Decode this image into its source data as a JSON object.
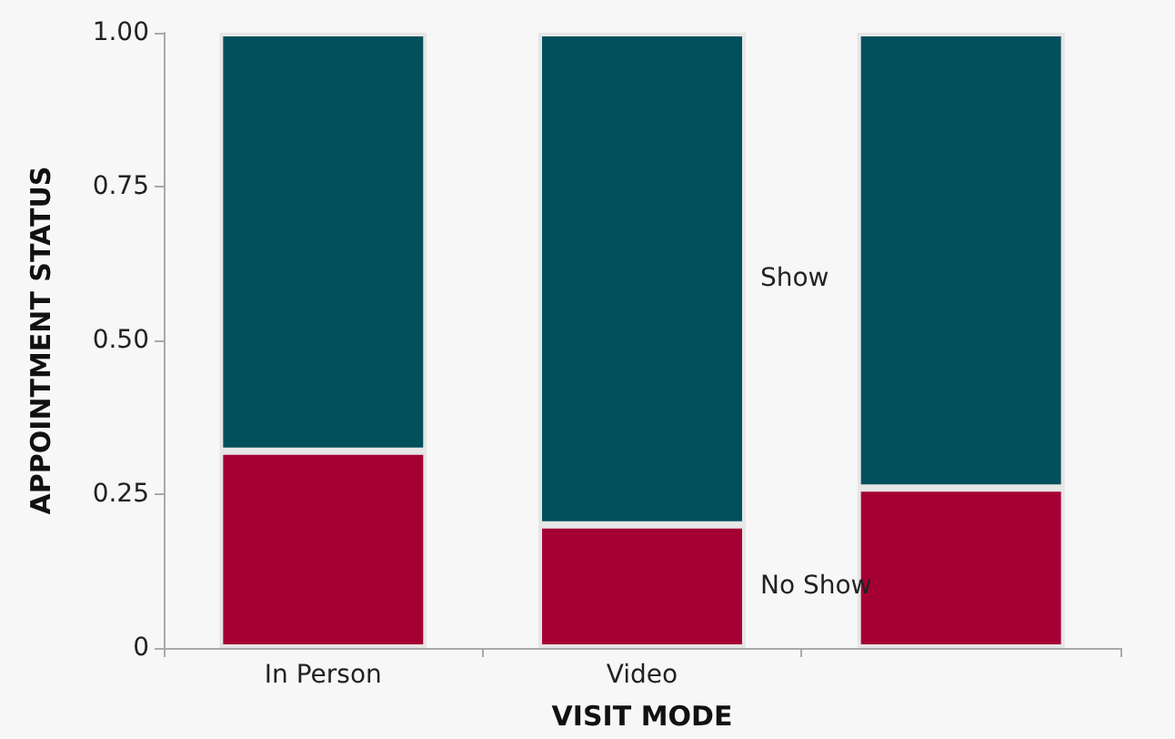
{
  "chart_data": {
    "type": "bar",
    "xlabel": "VISIT MODE",
    "ylabel": "APPOINTMENT STATUS",
    "categories": [
      "In Person",
      "Video",
      null
    ],
    "stacked": true,
    "series": [
      {
        "name": "No Show",
        "color": "#a50034",
        "values": [
          0.32,
          0.2,
          0.26
        ]
      },
      {
        "name": "Show",
        "color": "#02505c",
        "values": [
          0.68,
          0.8,
          0.74
        ]
      }
    ],
    "ylim": [
      0,
      1
    ],
    "yticks": [
      {
        "value": 0,
        "label": "0"
      },
      {
        "value": 0.25,
        "label": "0.25"
      },
      {
        "value": 0.5,
        "label": "0.50"
      },
      {
        "value": 0.75,
        "label": "0.75"
      },
      {
        "value": 1,
        "label": "1.00"
      }
    ],
    "grid": false,
    "legend": false
  }
}
